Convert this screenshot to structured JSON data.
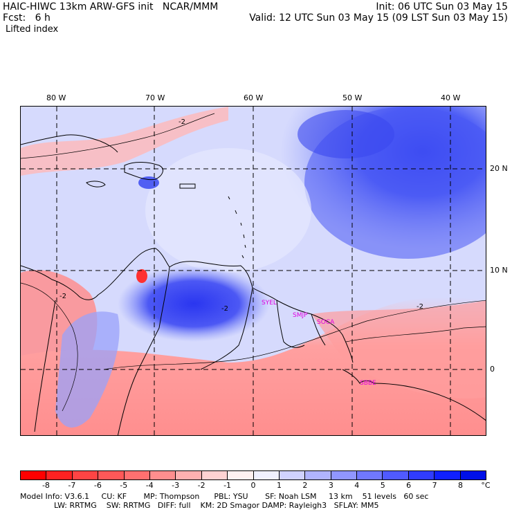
{
  "header": {
    "title": "HAIC-HIWC 13km ARW-GFS init   NCAR/MMM",
    "fcst": "Fcst:   6 h",
    "field": "Lifted index",
    "init": "Init: 06 UTC Sun 03 May 15",
    "valid": "Valid: 12 UTC Sun 03 May 15 (09 LST Sun 03 May 15)"
  },
  "map": {
    "lon_labels": [
      "80 W",
      "70 W",
      "60 W",
      "50 W",
      "40 W"
    ],
    "lat_labels": [
      "20 N",
      "10 N",
      "0"
    ],
    "contour_labels": [
      "-2",
      "-2",
      "-2",
      "-2"
    ],
    "stations": [
      "SYEL",
      "SMJP",
      "SOCA",
      "SBBE"
    ]
  },
  "colorbar": {
    "labels": [
      "-8",
      "-7",
      "-6",
      "-5",
      "-4",
      "-3",
      "-2",
      "-1",
      "0",
      "1",
      "2",
      "3",
      "4",
      "5",
      "6",
      "7",
      "8"
    ],
    "unit": "°C",
    "colors": [
      "#ff0000",
      "#ff2222",
      "#ff4444",
      "#ff5858",
      "#ff7070",
      "#ff8e8e",
      "#ffb0b0",
      "#ffd2d2",
      "#fff0f0",
      "#f0f0ff",
      "#d0d2ff",
      "#b0b4ff",
      "#9096ff",
      "#7078ff",
      "#505aff",
      "#303cff",
      "#1020ff",
      "#0010e8"
    ]
  },
  "footer": {
    "line1": "Model Info: V3.6.1     CU: KF       MP: Thompson      PBL: YSU       SF: Noah LSM     13 km    51 levels   60 sec",
    "line2": "              LW: RRTMG    SW: RRTMG   DIFF: full    KM: 2D Smagor DAMP: Rayleigh3   SFLAY: MM5"
  }
}
